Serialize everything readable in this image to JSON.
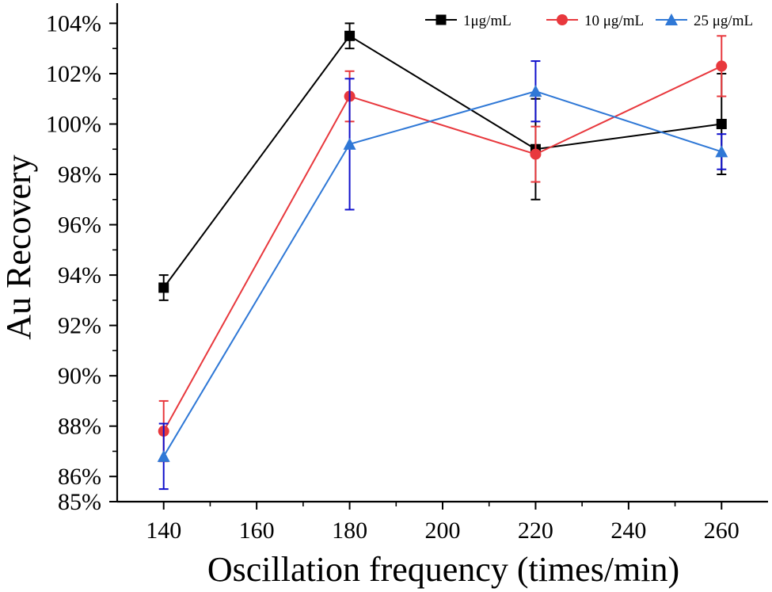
{
  "chart_data": {
    "type": "line",
    "title": "",
    "xlabel": "Oscillation frequency (times/min)",
    "ylabel": "Au Recovery",
    "x": [
      140,
      180,
      220,
      260
    ],
    "xlim": [
      130,
      270
    ],
    "ylim": [
      85,
      104.8
    ],
    "x_ticks": [
      140,
      160,
      180,
      200,
      220,
      240,
      260
    ],
    "y_ticks": [
      85,
      86,
      88,
      90,
      92,
      94,
      96,
      98,
      100,
      102,
      104
    ],
    "y_tick_labels": [
      "85%",
      "86%",
      "88%",
      "90%",
      "92%",
      "94%",
      "96%",
      "98%",
      "100%",
      "102%",
      "104%"
    ],
    "grid": false,
    "legend_position": "top-right",
    "series": [
      {
        "name": "1μg/mL",
        "marker": "square",
        "color": "#000000",
        "error_color": "#000000",
        "values": [
          93.5,
          103.5,
          99.0,
          100.0
        ],
        "errors": [
          0.5,
          0.5,
          2.0,
          2.0
        ]
      },
      {
        "name": "10 μg/mL",
        "marker": "circle",
        "color": "#e8383d",
        "error_color": "#e8383d",
        "values": [
          87.8,
          101.1,
          98.8,
          102.3
        ],
        "errors": [
          1.2,
          1.0,
          1.1,
          1.2
        ]
      },
      {
        "name": "25 μg/mL",
        "marker": "triangle",
        "color": "#2f78d6",
        "error_color": "#1010cc",
        "values": [
          86.8,
          99.2,
          101.3,
          98.9
        ],
        "errors": [
          1.3,
          2.6,
          1.2,
          0.7
        ]
      }
    ]
  }
}
